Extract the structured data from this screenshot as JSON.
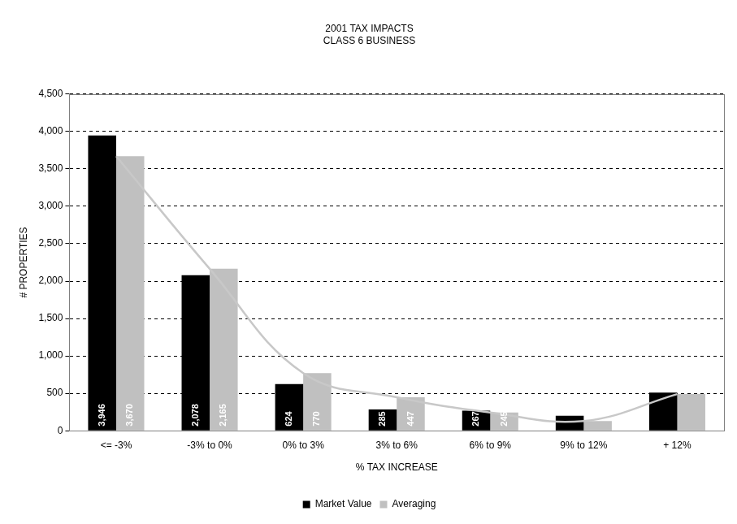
{
  "chart_data": {
    "type": "bar",
    "title": "2001 TAX IMPACTS",
    "subtitle": "CLASS 6 BUSINESS",
    "x_label": "% TAX INCREASE",
    "y_label": "# PROPERTIES",
    "categories": [
      "<= -3%",
      "-3% to 0%",
      "0% to 3%",
      "3% to 6%",
      "6% to 9%",
      "9% to 12%",
      "+ 12%"
    ],
    "series": [
      {
        "name": "Market Value",
        "color": "#000000",
        "values": [
          3946,
          2078,
          624,
          285,
          267,
          200,
          510
        ],
        "value_labels": [
          "3,946",
          "2,078",
          "624",
          "285",
          "267",
          null,
          null
        ]
      },
      {
        "name": "Averaging",
        "color": "#c0c0c0",
        "values": [
          3670,
          2165,
          770,
          447,
          245,
          130,
          490
        ],
        "value_labels": [
          "3,670",
          "2,165",
          "770",
          "447",
          "245",
          null,
          null
        ]
      },
      {
        "type": "line",
        "color": "#c8c8c8",
        "marker": "none",
        "values": [
          3670,
          2165,
          770,
          447,
          245,
          130,
          490
        ]
      }
    ],
    "ylim": [
      0,
      4500
    ],
    "yticks": [
      0,
      500,
      {
        "value": 1000,
        "label": "1,000"
      },
      {
        "value": 1500,
        "label": "1,500"
      },
      {
        "value": 2000,
        "label": "2,000"
      },
      {
        "value": 2500,
        "label": "2,500"
      },
      {
        "value": 3000,
        "label": "3,000"
      },
      {
        "value": 3500,
        "label": "3,500"
      },
      {
        "value": 4000,
        "label": "4,000"
      },
      {
        "value": 4500,
        "label": "4,500"
      }
    ],
    "grid": true,
    "legend": "bottom",
    "data_labels": true
  }
}
